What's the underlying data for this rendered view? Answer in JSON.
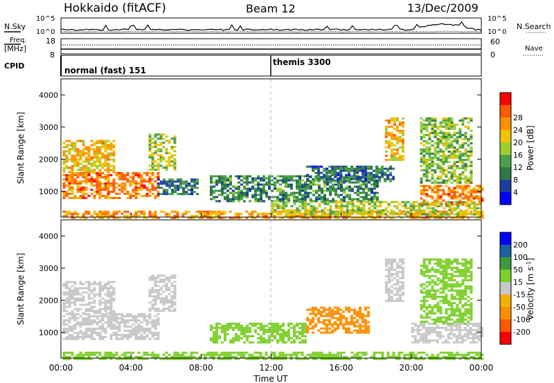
{
  "header": {
    "station": "Hokkaido (fitACF)",
    "beam": "Beam 12",
    "date": "13/Dec/2009"
  },
  "top_panels": {
    "nsky": {
      "label": "N.Sky",
      "tick_top": "10^5",
      "tick_bottom": "10^0"
    },
    "nsearch": {
      "label": "N.Search",
      "tick_top": "10^5",
      "tick_bottom": "10^0"
    },
    "freq": {
      "label_line1": "Freq.",
      "label_line2": "[MHz]",
      "tick_top": "18",
      "tick_bottom": "8"
    },
    "nave": {
      "label": "Nave",
      "tick_top": "60",
      "tick_bottom": "0"
    },
    "cpid": {
      "label": "CPID",
      "modes": [
        "normal (fast) 151",
        "themis 3300"
      ]
    }
  },
  "colors": {
    "power_scale": [
      "#0000ff",
      "#1a3fa0",
      "#2e7a45",
      "#4aa04a",
      "#9ccf2e",
      "#f2c200",
      "#ff9000",
      "#ff5a00",
      "#ff0000"
    ],
    "velocity_scale": [
      "#ff0000",
      "#ff5a00",
      "#ff9000",
      "#f2b000",
      "#c8c8c8",
      "#7fd02f",
      "#3a9a3a",
      "#1a5fa0",
      "#0000ff"
    ],
    "ground_scatter": "#c8c8c8"
  },
  "chart_data": [
    {
      "type": "heatmap",
      "title": "Power",
      "xlabel": "Time UT",
      "ylabel": "Slant Range [km]",
      "x_ticks": [
        "00:00",
        "04:00",
        "08:00",
        "12:00",
        "16:00",
        "20:00",
        "00:00"
      ],
      "y_ticks": [
        1000,
        2000,
        3000,
        4000
      ],
      "ylim": [
        200,
        4500
      ],
      "xlim_hours": [
        0,
        24
      ],
      "colorbar": {
        "label": "Power [dB]",
        "ticks": [
          4,
          8,
          12,
          16,
          20,
          24,
          28
        ]
      },
      "regions": [
        {
          "t0": 0.1,
          "t1": 5.6,
          "r0": 800,
          "r1": 1600,
          "value": 26
        },
        {
          "t0": 0.1,
          "t1": 3.0,
          "r0": 1600,
          "r1": 2600,
          "value": 22
        },
        {
          "t0": 5.0,
          "t1": 6.5,
          "r0": 1700,
          "r1": 2800,
          "value": 18
        },
        {
          "t0": 5.5,
          "t1": 7.8,
          "r0": 900,
          "r1": 1400,
          "value": 10
        },
        {
          "t0": 0.1,
          "t1": 24.0,
          "r0": 200,
          "r1": 400,
          "value": 24
        },
        {
          "t0": 8.5,
          "t1": 18.0,
          "r0": 700,
          "r1": 1500,
          "value": 12
        },
        {
          "t0": 14.0,
          "t1": 19.0,
          "r0": 1300,
          "r1": 1800,
          "value": 10
        },
        {
          "t0": 18.5,
          "t1": 19.5,
          "r0": 2000,
          "r1": 3300,
          "value": 22
        },
        {
          "t0": 20.5,
          "t1": 23.5,
          "r0": 1300,
          "r1": 3300,
          "value": 16
        },
        {
          "t0": 20.5,
          "t1": 24.0,
          "r0": 600,
          "r1": 1200,
          "value": 26
        },
        {
          "t0": 12.0,
          "t1": 24.0,
          "r0": 300,
          "r1": 700,
          "value": 18
        }
      ]
    },
    {
      "type": "heatmap",
      "title": "Velocity",
      "xlabel": "Time UT",
      "ylabel": "Slant Range [km]",
      "x_ticks": [
        "00:00",
        "04:00",
        "08:00",
        "12:00",
        "16:00",
        "20:00",
        "00:00"
      ],
      "y_ticks": [
        1000,
        2000,
        3000,
        4000
      ],
      "ylim": [
        200,
        4500
      ],
      "xlim_hours": [
        0,
        24
      ],
      "colorbar": {
        "label": "Velocity [m s^-1]",
        "ticks": [
          200,
          100,
          50,
          15,
          -15,
          -50,
          -100,
          -200
        ]
      },
      "regions": [
        {
          "t0": 0.1,
          "t1": 5.6,
          "r0": 800,
          "r1": 1600,
          "value": 0
        },
        {
          "t0": 0.1,
          "t1": 3.0,
          "r0": 1600,
          "r1": 2600,
          "value": 0
        },
        {
          "t0": 5.0,
          "t1": 6.5,
          "r0": 1700,
          "r1": 2800,
          "value": 0
        },
        {
          "t0": 8.5,
          "t1": 14.0,
          "r0": 700,
          "r1": 1300,
          "value": 40
        },
        {
          "t0": 14.0,
          "t1": 17.5,
          "r0": 1000,
          "r1": 1800,
          "value": -70
        },
        {
          "t0": 18.5,
          "t1": 19.5,
          "r0": 2000,
          "r1": 3300,
          "value": 0
        },
        {
          "t0": 20.5,
          "t1": 23.5,
          "r0": 1300,
          "r1": 3300,
          "value": 20
        },
        {
          "t0": 20.0,
          "t1": 24.0,
          "r0": 700,
          "r1": 1300,
          "value": 0
        },
        {
          "t0": 0.1,
          "t1": 24.0,
          "r0": 200,
          "r1": 400,
          "value": 30
        }
      ]
    }
  ],
  "axes": {
    "xlabel": "Time UT",
    "x_ticks": [
      "00:00",
      "04:00",
      "08:00",
      "12:00",
      "16:00",
      "20:00",
      "00:00"
    ]
  }
}
